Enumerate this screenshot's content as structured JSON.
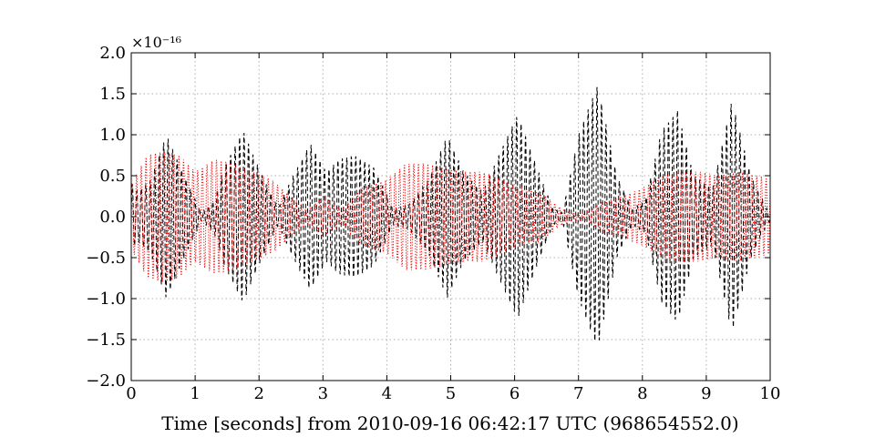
{
  "chart_data": {
    "type": "line",
    "title": "",
    "xlabel": "Time [seconds] from 2010-09-16 06:42:17 UTC (968654552.0)",
    "ylabel": "",
    "xlim": [
      0,
      10
    ],
    "ylim": [
      -2e-16,
      2e-16
    ],
    "y_exponent_label": "×10⁻¹⁶",
    "x_ticks": [
      0,
      1,
      2,
      3,
      4,
      5,
      6,
      7,
      8,
      9,
      10
    ],
    "x_tick_labels": [
      "0",
      "1",
      "2",
      "3",
      "4",
      "5",
      "6",
      "7",
      "8",
      "9",
      "10"
    ],
    "y_ticks": [
      -2.0,
      -1.5,
      -1.0,
      -0.5,
      0.0,
      0.5,
      1.0,
      1.5,
      2.0
    ],
    "y_tick_labels": [
      "−2.0",
      "−1.5",
      "−1.0",
      "−0.5",
      "0.0",
      "0.5",
      "1.0",
      "1.5",
      "2.0"
    ],
    "grid": true,
    "legend": "none",
    "series": [
      {
        "color": "#000000",
        "style": "dashed",
        "envelope_t": [
          0,
          0.1,
          0.3,
          0.55,
          0.8,
          1.1,
          1.3,
          1.45,
          1.75,
          2.05,
          2.3,
          2.5,
          2.8,
          3.05,
          3.25,
          3.5,
          3.8,
          4.1,
          4.35,
          4.65,
          4.95,
          5.2,
          5.5,
          5.75,
          6.05,
          6.35,
          6.6,
          6.75,
          7.0,
          7.3,
          7.6,
          7.85,
          8.05,
          8.3,
          8.55,
          8.8,
          9.1,
          9.4,
          9.7,
          9.95,
          10
        ],
        "envelope_amp": [
          0.42,
          0.3,
          0.45,
          1.0,
          0.55,
          0.05,
          0.2,
          0.6,
          1.05,
          0.5,
          0.1,
          0.45,
          0.9,
          0.55,
          0.7,
          0.75,
          0.6,
          0.1,
          0.15,
          0.45,
          1.0,
          0.55,
          0.3,
          0.75,
          1.25,
          0.6,
          0.1,
          0.05,
          1.0,
          1.62,
          0.5,
          0.1,
          0.2,
          1.05,
          1.3,
          0.5,
          0.35,
          1.42,
          0.5,
          0.1,
          0.05
        ]
      },
      {
        "color": "#ff0000",
        "style": "dotted",
        "envelope_t": [
          0,
          0.25,
          0.5,
          0.75,
          1.0,
          1.3,
          1.6,
          1.9,
          2.2,
          2.5,
          2.75,
          3.0,
          3.3,
          3.6,
          4.0,
          4.3,
          4.6,
          4.9,
          5.2,
          5.5,
          5.8,
          6.1,
          6.4,
          6.7,
          6.9,
          7.1,
          7.4,
          7.7,
          8.0,
          8.3,
          8.6,
          8.9,
          9.2,
          9.5,
          9.8,
          10
        ],
        "envelope_amp": [
          0.4,
          0.75,
          0.8,
          0.75,
          0.55,
          0.7,
          0.65,
          0.55,
          0.45,
          0.25,
          0.08,
          0.25,
          0.1,
          0.35,
          0.45,
          0.65,
          0.65,
          0.6,
          0.55,
          0.55,
          0.45,
          0.35,
          0.3,
          0.12,
          0.05,
          0.05,
          0.2,
          0.25,
          0.35,
          0.5,
          0.55,
          0.55,
          0.5,
          0.55,
          0.5,
          0.45
        ]
      }
    ]
  }
}
